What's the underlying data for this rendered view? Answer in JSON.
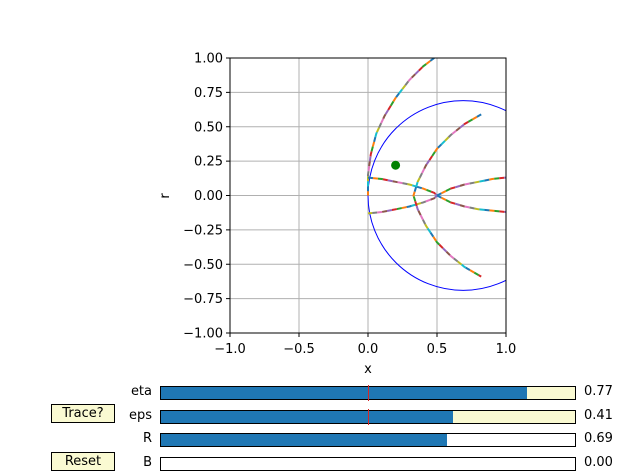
{
  "colors": {
    "circle": "#0000ff",
    "point": "#008000",
    "slider_fill": "#1f77b4",
    "slider_bg": "#fafad2",
    "valinit": "#d62728",
    "grid": "#b0b0b0",
    "trace_palette": [
      "#1f77b4",
      "#ff7f0e",
      "#2ca02c",
      "#d62728",
      "#9467bd",
      "#8c564b",
      "#e377c2",
      "#7f7f7f",
      "#bcbd22",
      "#17becf"
    ]
  },
  "chart_data": {
    "type": "line",
    "title": "",
    "xlabel": "x",
    "ylabel": "r",
    "xlim": [
      -1.0,
      1.0
    ],
    "ylim": [
      -1.0,
      1.0
    ],
    "grid": true,
    "x_ticks": [
      {
        "value": -1.0,
        "label": "−1.0"
      },
      {
        "value": -0.5,
        "label": "−0.5"
      },
      {
        "value": 0.0,
        "label": "0.0"
      },
      {
        "value": 0.5,
        "label": "0.5"
      },
      {
        "value": 1.0,
        "label": "1.0"
      }
    ],
    "y_ticks": [
      {
        "value": 1.0,
        "label": "1.00"
      },
      {
        "value": 0.75,
        "label": "0.75"
      },
      {
        "value": 0.5,
        "label": "0.50"
      },
      {
        "value": 0.25,
        "label": "0.25"
      },
      {
        "value": 0.0,
        "label": "0.00"
      },
      {
        "value": -0.25,
        "label": "−0.25"
      },
      {
        "value": -0.5,
        "label": "−0.50"
      },
      {
        "value": -0.75,
        "label": "−0.75"
      },
      {
        "value": -1.0,
        "label": "−1.00"
      }
    ],
    "circle": {
      "center": [
        0.69,
        0.0
      ],
      "radius": 0.69
    },
    "point": [
      0.2,
      0.22
    ],
    "curves": [
      [
        [
          0.48,
          1.0
        ],
        [
          0.4,
          0.94
        ],
        [
          0.3,
          0.84
        ],
        [
          0.2,
          0.71
        ],
        [
          0.12,
          0.58
        ],
        [
          0.06,
          0.45
        ],
        [
          0.02,
          0.3
        ],
        [
          0.0,
          0.15
        ],
        [
          0.0,
          0.0
        ]
      ],
      [
        [
          0.0,
          0.13
        ],
        [
          0.1,
          0.12
        ],
        [
          0.2,
          0.1
        ],
        [
          0.3,
          0.08
        ],
        [
          0.4,
          0.05
        ],
        [
          0.48,
          0.02
        ],
        [
          0.5,
          0.0
        ],
        [
          0.48,
          -0.02
        ],
        [
          0.4,
          -0.05
        ],
        [
          0.3,
          -0.08
        ],
        [
          0.2,
          -0.1
        ],
        [
          0.1,
          -0.12
        ],
        [
          0.0,
          -0.13
        ]
      ],
      [
        [
          0.82,
          0.59
        ],
        [
          0.7,
          0.52
        ],
        [
          0.6,
          0.44
        ],
        [
          0.5,
          0.34
        ],
        [
          0.42,
          0.22
        ],
        [
          0.36,
          0.1
        ],
        [
          0.33,
          0.0
        ],
        [
          0.36,
          -0.1
        ],
        [
          0.42,
          -0.22
        ],
        [
          0.5,
          -0.34
        ],
        [
          0.6,
          -0.44
        ],
        [
          0.7,
          -0.52
        ],
        [
          0.82,
          -0.59
        ]
      ],
      [
        [
          0.5,
          0.0
        ],
        [
          0.6,
          0.05
        ],
        [
          0.7,
          0.08
        ],
        [
          0.8,
          0.1
        ],
        [
          0.9,
          0.12
        ],
        [
          1.0,
          0.13
        ]
      ],
      [
        [
          0.5,
          0.0
        ],
        [
          0.6,
          -0.05
        ],
        [
          0.7,
          -0.08
        ],
        [
          0.8,
          -0.1
        ],
        [
          0.9,
          -0.11
        ],
        [
          1.0,
          -0.12
        ]
      ]
    ]
  },
  "sliders": [
    {
      "label": "eta",
      "value_text": "0.77",
      "fraction": 0.885,
      "valinit_fraction": 0.5,
      "bg": "#fafad2"
    },
    {
      "label": "eps",
      "value_text": "0.41",
      "fraction": 0.705,
      "valinit_fraction": 0.5,
      "bg": "#fafad2"
    },
    {
      "label": "R",
      "value_text": "0.69",
      "fraction": 0.69,
      "valinit_fraction": null,
      "bg": "#ffffff"
    },
    {
      "label": "B",
      "value_text": "0.00",
      "fraction": 0.0,
      "valinit_fraction": null,
      "bg": "#ffffff"
    }
  ],
  "buttons": {
    "trace_label": "Trace?",
    "reset_label": "Reset"
  }
}
